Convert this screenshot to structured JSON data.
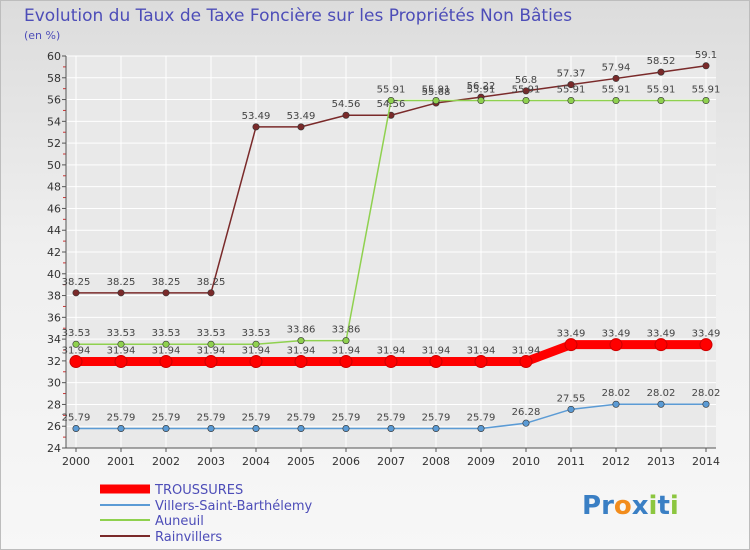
{
  "chart_data": {
    "type": "line",
    "title": "Evolution du Taux de Taxe Foncière sur les Propriétés Non Bâties",
    "unit_label": "(en %)",
    "xlabel": "",
    "ylabel": "",
    "ylim": [
      24,
      60
    ],
    "y_ticks": [
      24,
      26,
      28,
      30,
      32,
      34,
      36,
      38,
      40,
      42,
      44,
      46,
      48,
      50,
      52,
      54,
      56,
      58,
      60
    ],
    "categories": [
      "2000",
      "2001",
      "2002",
      "2003",
      "2004",
      "2005",
      "2006",
      "2007",
      "2008",
      "2009",
      "2010",
      "2011",
      "2012",
      "2013",
      "2014"
    ],
    "series": [
      {
        "name": "TROUSSURES",
        "color": "#ff0000",
        "values": [
          31.94,
          31.94,
          31.94,
          31.94,
          31.94,
          31.94,
          31.94,
          31.94,
          31.94,
          31.94,
          31.94,
          33.49,
          33.49,
          33.49,
          33.49
        ],
        "labels": [
          "31.94",
          "31.94",
          "31.94",
          "31.94",
          "31.94",
          "31.94",
          "31.94",
          "31.94",
          "31.94",
          "31.94",
          "31.94",
          "33.49",
          "33.49",
          "33.49",
          "33.49"
        ]
      },
      {
        "name": "Villers-Saint-Barthélemy",
        "color": "#5b9bd5",
        "values": [
          25.79,
          25.79,
          25.79,
          25.79,
          25.79,
          25.79,
          25.79,
          25.79,
          25.79,
          25.79,
          26.28,
          27.55,
          28.02,
          28.02,
          28.02
        ],
        "labels": [
          "25.79",
          "25.79",
          "25.79",
          "25.79",
          "25.79",
          "25.79",
          "25.79",
          "25.79",
          "25.79",
          "25.79",
          "26.28",
          "27.55",
          "28.02",
          "28.02",
          "28.02"
        ]
      },
      {
        "name": "Auneuil",
        "color": "#8fd14f",
        "values": [
          33.53,
          33.53,
          33.53,
          33.53,
          33.53,
          33.86,
          33.86,
          55.91,
          55.91,
          55.91,
          55.91,
          55.91,
          55.91,
          55.91,
          55.91
        ],
        "labels": [
          "33.53",
          "33.53",
          "33.53",
          "33.53",
          "33.53",
          "33.86",
          "33.86",
          "55.91",
          "55.91",
          "55.91",
          "55.91",
          "55.91",
          "55.91",
          "55.91",
          "55.91"
        ]
      },
      {
        "name": "Rainvillers",
        "color": "#7a2a2a",
        "values": [
          38.25,
          38.25,
          38.25,
          38.25,
          53.49,
          53.49,
          54.56,
          54.56,
          55.68,
          56.22,
          56.8,
          57.37,
          57.94,
          58.52,
          59.1
        ],
        "labels": [
          "38.25",
          "38.25",
          "38.25",
          "38.25",
          "53.49",
          "53.49",
          "54.56",
          "54.56",
          "55.68",
          "56.22",
          "56.8",
          "57.37",
          "57.94",
          "58.52",
          "59.1"
        ]
      }
    ],
    "legend_position": "bottom-left"
  },
  "brand": {
    "logo_text": "Proxiti",
    "letters": [
      "P",
      "r",
      "o",
      "x",
      "i",
      "t",
      "i"
    ],
    "letter_colors": [
      "#3a7fc4",
      "#3a7fc4",
      "#f28c1c",
      "#3a7fc4",
      "#8cc63f",
      "#3a7fc4",
      "#8cc63f"
    ]
  }
}
